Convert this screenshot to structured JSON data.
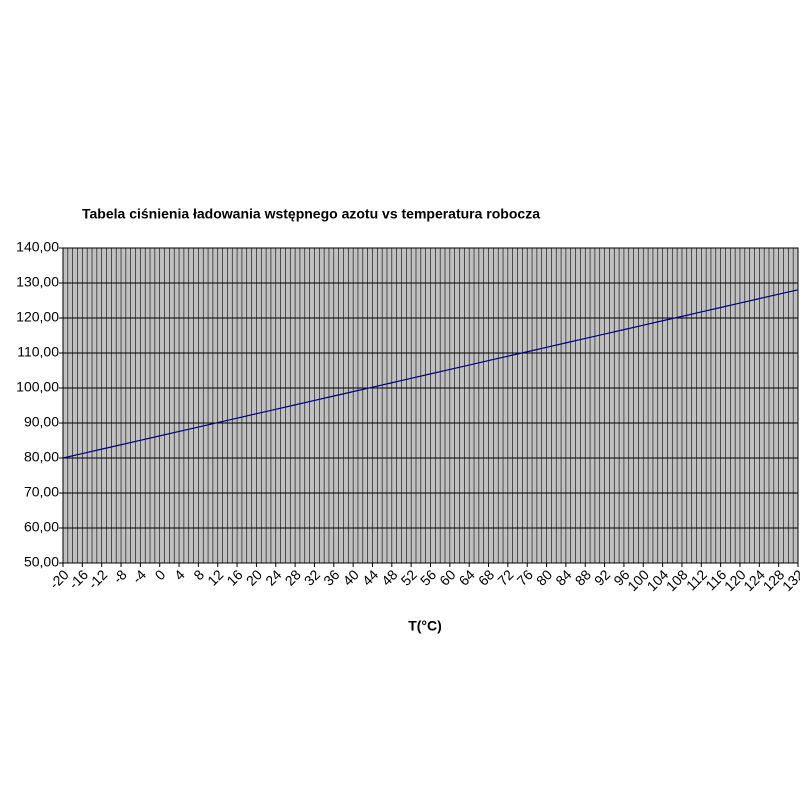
{
  "chart_data": {
    "type": "line",
    "title": "Tabela ciśnienia ładowania wstępnego azotu vs temperatura robocza",
    "x_label": "T(°C)",
    "x": [
      -20,
      -16,
      -12,
      -8,
      -4,
      0,
      4,
      8,
      12,
      16,
      20,
      24,
      28,
      32,
      36,
      40,
      44,
      48,
      52,
      56,
      60,
      64,
      68,
      72,
      76,
      80,
      84,
      88,
      92,
      96,
      100,
      104,
      108,
      112,
      116,
      120,
      124,
      128,
      132
    ],
    "series": [
      {
        "color": "#000080",
        "values": [
          80.0,
          81.26,
          82.53,
          83.79,
          85.06,
          86.32,
          87.59,
          88.85,
          90.12,
          91.38,
          92.65,
          93.91,
          95.18,
          96.44,
          97.71,
          98.97,
          100.24,
          101.5,
          102.77,
          104.03,
          105.3,
          106.56,
          107.83,
          109.09,
          110.36,
          111.62,
          112.89,
          114.15,
          115.41,
          116.68,
          117.94,
          119.21,
          120.47,
          121.74,
          123.0,
          124.27,
          125.53,
          126.8,
          128.06
        ]
      }
    ],
    "xlim": [
      -20,
      132
    ],
    "xticks": [
      -20,
      -16,
      -12,
      -8,
      -4,
      0,
      4,
      8,
      12,
      16,
      20,
      24,
      28,
      32,
      36,
      40,
      44,
      48,
      52,
      56,
      60,
      64,
      68,
      72,
      76,
      80,
      84,
      88,
      92,
      96,
      100,
      104,
      108,
      112,
      116,
      120,
      124,
      128,
      132
    ],
    "xgrid_step": 1,
    "ylim": [
      50,
      140
    ],
    "yticks": [
      {
        "value": 50,
        "label": "50,00"
      },
      {
        "value": 60,
        "label": "60,00"
      },
      {
        "value": 70,
        "label": "70,00"
      },
      {
        "value": 80,
        "label": "80,00"
      },
      {
        "value": 90,
        "label": "90,00"
      },
      {
        "value": 100,
        "label": "100,00"
      },
      {
        "value": 110,
        "label": "110,00"
      },
      {
        "value": 120,
        "label": "120,00"
      },
      {
        "value": 130,
        "label": "130,00"
      },
      {
        "value": 140,
        "label": "140,00"
      }
    ],
    "grid": true,
    "plot_background": "#c0c0c0"
  }
}
